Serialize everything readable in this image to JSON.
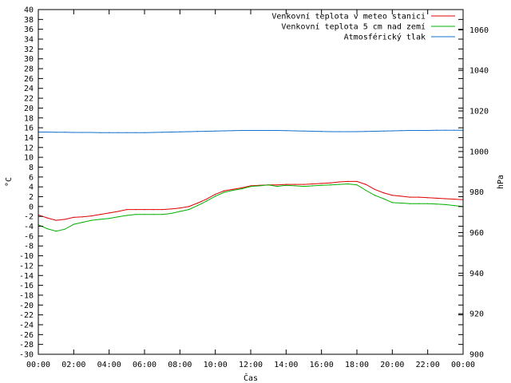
{
  "chart_data": {
    "type": "line",
    "xlabel": "Čas",
    "ylabel": "°C",
    "y2label": "hPa",
    "x_ticks": [
      "00:00",
      "02:00",
      "04:00",
      "06:00",
      "08:00",
      "10:00",
      "12:00",
      "14:00",
      "16:00",
      "18:00",
      "20:00",
      "22:00",
      "00:00"
    ],
    "xlim_hours": [
      0,
      24
    ],
    "ylim": [
      -30,
      40
    ],
    "y_ticks": [
      -30,
      -28,
      -26,
      -24,
      -22,
      -20,
      -18,
      -16,
      -14,
      -12,
      -10,
      -8,
      -6,
      -4,
      -2,
      0,
      2,
      4,
      6,
      8,
      10,
      12,
      14,
      16,
      18,
      20,
      22,
      24,
      26,
      28,
      30,
      32,
      34,
      36,
      38,
      40
    ],
    "y2lim": [
      900,
      1070
    ],
    "y2_ticks": [
      900,
      920,
      940,
      960,
      980,
      1000,
      1020,
      1040,
      1060
    ],
    "grid": false,
    "legend_position": "top-right",
    "x_hours": [
      0,
      0.5,
      1,
      1.5,
      2,
      2.5,
      3,
      3.5,
      4,
      4.5,
      5,
      5.5,
      6,
      6.5,
      7,
      7.5,
      8,
      8.5,
      9,
      9.5,
      10,
      10.5,
      11,
      11.5,
      12,
      12.5,
      13,
      13.5,
      14,
      14.5,
      15,
      15.5,
      16,
      16.5,
      17,
      17.5,
      18,
      18.5,
      19,
      19.5,
      20,
      20.5,
      21,
      21.5,
      22,
      22.5,
      23,
      23.5,
      24
    ],
    "series": [
      {
        "name": "Venkovní teplota v meteo stanici",
        "color": "#e00000",
        "axis": "left",
        "values": [
          -1.7,
          -2.3,
          -2.8,
          -2.6,
          -2.2,
          -2.1,
          -1.9,
          -1.6,
          -1.3,
          -1.0,
          -0.6,
          -0.6,
          -0.6,
          -0.6,
          -0.6,
          -0.5,
          -0.3,
          0.0,
          0.7,
          1.5,
          2.5,
          3.2,
          3.5,
          3.8,
          4.2,
          4.3,
          4.4,
          4.4,
          4.5,
          4.5,
          4.5,
          4.6,
          4.7,
          4.8,
          5.0,
          5.1,
          5.1,
          4.5,
          3.5,
          2.8,
          2.3,
          2.1,
          1.9,
          1.9,
          1.8,
          1.7,
          1.6,
          1.5,
          1.4
        ]
      },
      {
        "name": "Venkovní teplota 5 cm nad zemí",
        "color": "#00b000",
        "axis": "left",
        "values": [
          -3.7,
          -4.5,
          -5.0,
          -4.6,
          -3.6,
          -3.2,
          -2.8,
          -2.6,
          -2.4,
          -2.1,
          -1.8,
          -1.6,
          -1.6,
          -1.6,
          -1.6,
          -1.4,
          -1.0,
          -0.6,
          0.2,
          1.1,
          2.1,
          2.9,
          3.3,
          3.6,
          4.1,
          4.2,
          4.4,
          4.1,
          4.3,
          4.2,
          4.1,
          4.2,
          4.3,
          4.4,
          4.5,
          4.6,
          4.4,
          3.3,
          2.3,
          1.6,
          0.8,
          0.7,
          0.6,
          0.6,
          0.6,
          0.5,
          0.4,
          0.2,
          0.0
        ]
      },
      {
        "name": "Atmosférický tlak",
        "color": "#1070d0",
        "axis": "right",
        "values": [
          1009.6,
          1009.6,
          1009.5,
          1009.5,
          1009.4,
          1009.4,
          1009.4,
          1009.3,
          1009.3,
          1009.3,
          1009.3,
          1009.3,
          1009.3,
          1009.4,
          1009.5,
          1009.6,
          1009.7,
          1009.8,
          1009.9,
          1010.0,
          1010.1,
          1010.2,
          1010.3,
          1010.4,
          1010.4,
          1010.4,
          1010.4,
          1010.4,
          1010.3,
          1010.2,
          1010.1,
          1010.0,
          1009.9,
          1009.8,
          1009.8,
          1009.8,
          1009.8,
          1009.9,
          1010.0,
          1010.1,
          1010.2,
          1010.3,
          1010.4,
          1010.4,
          1010.4,
          1010.5,
          1010.5,
          1010.5,
          1010.5
        ]
      }
    ]
  }
}
